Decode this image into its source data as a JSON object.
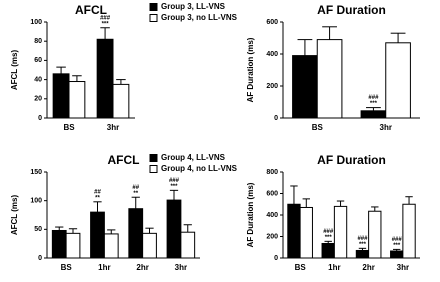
{
  "chart_data": [
    {
      "type": "bar",
      "title": "AFCL",
      "y_label": "AFCL (ms)",
      "categories": [
        "BS",
        "3hr"
      ],
      "series": [
        {
          "name": "Group 3, LL-VNS",
          "color": "#000000",
          "values": [
            46,
            82
          ],
          "errors": [
            7,
            12
          ]
        },
        {
          "name": "Group 3, no LL-VNS",
          "color": "#ffffff",
          "values": [
            38,
            35
          ],
          "errors": [
            6,
            5
          ]
        }
      ],
      "annotations": [
        {
          "category": "3hr",
          "text": [
            "###",
            "***"
          ]
        }
      ],
      "ylim": [
        0,
        100
      ],
      "yticks": [
        0,
        20,
        40,
        60,
        80,
        100
      ]
    },
    {
      "type": "bar",
      "title": "AF Duration",
      "y_label": "AF Duration (ms)",
      "categories": [
        "BS",
        "3hr"
      ],
      "series": [
        {
          "color": "#000000",
          "values": [
            390,
            45
          ],
          "errors": [
            100,
            20
          ]
        },
        {
          "color": "#ffffff",
          "values": [
            490,
            470
          ],
          "errors": [
            80,
            60
          ]
        }
      ],
      "annotations": [
        {
          "category": "3hr",
          "text": [
            "###",
            "***"
          ]
        }
      ],
      "ylim": [
        0,
        600
      ],
      "yticks": [
        0,
        200,
        400,
        600
      ]
    },
    {
      "type": "bar",
      "title": "AFCL",
      "y_label": "AFCL (ms)",
      "categories": [
        "BS",
        "1hr",
        "2hr",
        "3hr"
      ],
      "series": [
        {
          "name": "Group 4, LL-VNS",
          "color": "#000000",
          "values": [
            48,
            80,
            86,
            101
          ],
          "errors": [
            6,
            18,
            20,
            17
          ]
        },
        {
          "name": "Group 4, no LL-VNS",
          "color": "#ffffff",
          "values": [
            43,
            42,
            43,
            45
          ],
          "errors": [
            8,
            7,
            9,
            13
          ]
        }
      ],
      "annotations": [
        {
          "category": "1hr",
          "text": [
            "##",
            "**"
          ]
        },
        {
          "category": "2hr",
          "text": [
            "##",
            "**"
          ]
        },
        {
          "category": "3hr",
          "text": [
            "###",
            "***"
          ]
        }
      ],
      "ylim": [
        0,
        150
      ],
      "yticks": [
        0,
        50,
        100,
        150
      ]
    },
    {
      "type": "bar",
      "title": "AF Duration",
      "y_label": "AF Duration (ms)",
      "categories": [
        "BS",
        "1hr",
        "2hr",
        "3hr"
      ],
      "series": [
        {
          "color": "#000000",
          "values": [
            500,
            135,
            70,
            65
          ],
          "errors": [
            170,
            20,
            20,
            15
          ]
        },
        {
          "color": "#ffffff",
          "values": [
            470,
            480,
            435,
            500
          ],
          "errors": [
            80,
            50,
            40,
            70
          ]
        }
      ],
      "annotations": [
        {
          "category": "1hr",
          "text": [
            "###",
            "***"
          ]
        },
        {
          "category": "2hr",
          "text": [
            "###",
            "***"
          ]
        },
        {
          "category": "3hr",
          "text": [
            "###",
            "***"
          ]
        }
      ],
      "ylim": [
        0,
        800
      ],
      "yticks": [
        0,
        200,
        400,
        600,
        800
      ]
    }
  ]
}
